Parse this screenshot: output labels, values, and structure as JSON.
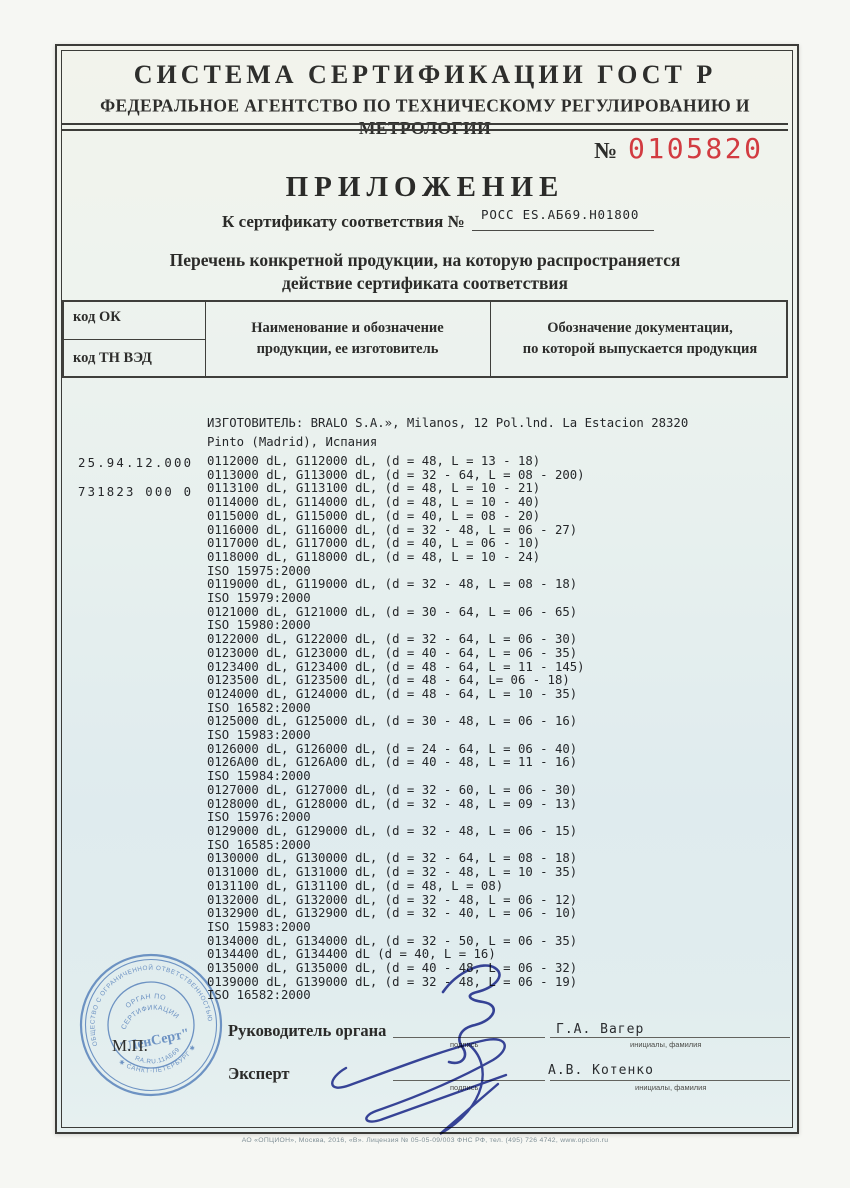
{
  "colors": {
    "accent_red": "#d23b41",
    "stamp_blue": "#5d87c6",
    "ink_blue": "#3c47a0"
  },
  "header": {
    "line1": "СИСТЕМА СЕРТИФИКАЦИИ ГОСТ Р",
    "line2": "ФЕДЕРАЛЬНОЕ АГЕНТСТВО ПО ТЕХНИЧЕСКОМУ РЕГУЛИРОВАНИЮ И МЕТРОЛОГИИ"
  },
  "number": {
    "label": "№",
    "value": "0105820"
  },
  "title": "ПРИЛОЖЕНИЕ",
  "certificate_line": {
    "label": "К сертификату соответствия №",
    "value": "РОСС ES.АБ69.Н01800"
  },
  "subtitle": "Перечень конкретной продукции,  на которую распространяется\nдействие сертификата соответствия",
  "table_header": {
    "col1_top": "код ОК",
    "col1_bottom": "код ТН ВЭД",
    "col2": "Наименование и обозначение\nпродукции, ее изготовитель",
    "col3": "Обозначение документации,\nпо которой выпускается продукция"
  },
  "codes": {
    "ok": "25.94.12.000",
    "tnved": "731823 000 0"
  },
  "manufacturer": "ИЗГОТОВИТЕЛЬ: BRALO S.A.», Milanos, 12 Pol.lnd. La Estacion 28320\nPinto (Madrid), Испания",
  "products": [
    "0112000 dL, G112000 dL, (d = 48, L = 13 - 18)",
    "0113000 dL, G113000 dL, (d = 32 - 64, L = 08 - 200)",
    "0113100 dL, G113100 dL, (d = 48, L = 10 - 21)",
    "0114000 dL, G114000 dL, (d = 48, L = 10 - 40)",
    "0115000 dL, G115000 dL, (d = 40, L = 08 - 20)",
    "0116000 dL, G116000 dL, (d = 32 - 48, L = 06 - 27)",
    "0117000 dL, G117000 dL, (d = 40, L = 06 - 10)",
    "0118000 dL, G118000 dL, (d = 48, L = 10 - 24)",
    "ISO 15975:2000",
    "0119000 dL, G119000 dL, (d = 32 - 48, L = 08 - 18)",
    "ISO 15979:2000",
    "0121000 dL, G121000 dL, (d = 30 - 64, L = 06 - 65)",
    "ISO 15980:2000",
    "0122000 dL, G122000 dL, (d = 32 - 64, L = 06 - 30)",
    "0123000 dL, G123000 dL, (d = 40 - 64, L = 06 - 35)",
    "0123400 dL, G123400 dL, (d = 48 - 64, L = 11 - 145)",
    "0123500 dL, G123500 dL, (d = 48 - 64, L= 06 - 18)",
    "0124000 dL, G124000 dL, (d = 48 - 64, L = 10 - 35)",
    "ISO 16582:2000",
    "0125000 dL, G125000 dL, (d = 30 - 48, L = 06 - 16)",
    "ISO 15983:2000",
    "0126000 dL, G126000 dL, (d = 24 - 64, L = 06 - 40)",
    "0126A00 dL, G126A00 dL, (d = 40 - 48, L = 11 - 16)",
    "ISO 15984:2000",
    "0127000 dL, G127000 dL, (d = 32 - 60, L = 06 - 30)",
    "0128000 dL, G128000 dL, (d = 32 - 48, L = 09 - 13)",
    "ISO 15976:2000",
    "0129000 dL, G129000 dL, (d = 32 - 48, L = 06 - 15)",
    "ISO 16585:2000",
    "0130000 dL, G130000 dL, (d = 32 - 64, L = 08 - 18)",
    "0131000 dL, G131000 dL, (d = 32 - 48, L = 10 - 35)",
    "0131100 dL, G131100 dL, (d = 48, L = 08)",
    "0132000 dL, G132000 dL, (d = 32 - 48, L = 06 - 12)",
    "0132900 dL, G132900 dL, (d = 32 - 40, L = 06 - 10)",
    "ISO 15983:2000",
    "0134000 dL, G134000 dL, (d = 32 - 50, L = 06 - 35)",
    "0134400 dL, G134400 dL (d = 40, L = 16)",
    "0135000 dL, G135000 dL, (d = 40 - 48, L = 06 - 32)",
    "0139000 dL, G139000 dL, (d = 32 - 48, L = 06 - 19)",
    "ISO 16582:2000"
  ],
  "signatures": {
    "row1": {
      "role": "Руководитель органа",
      "sign_sub": "подпись",
      "name": "Г.А. Вагер",
      "name_sub": "инициалы, фамилия"
    },
    "row2": {
      "role": "Эксперт",
      "sign_sub": "подпись",
      "name": "А.В. Котенко",
      "name_sub": "инициалы, фамилия"
    }
  },
  "stamp": {
    "mp": "М.П.",
    "outer_top": "ОБЩЕСТВО С ОГРАНИЧЕННОЙ ОТВЕТСТВЕННОСТЬЮ",
    "outer_bottom": "✱ САНКТ-ПЕТЕРБУРГ ✱",
    "org_line1": "ОРГАН ПО",
    "org_line2": "СЕРТИФИКАЦИИ",
    "name": "\"ЛенСерт\"",
    "code": "RA.RU.11АБ69"
  },
  "footer": "АО «ОПЦИОН», Москва, 2016, «В».  Лицензия № 05-05-09/003 ФНС РФ, тел. (495) 726 4742, www.opcion.ru"
}
